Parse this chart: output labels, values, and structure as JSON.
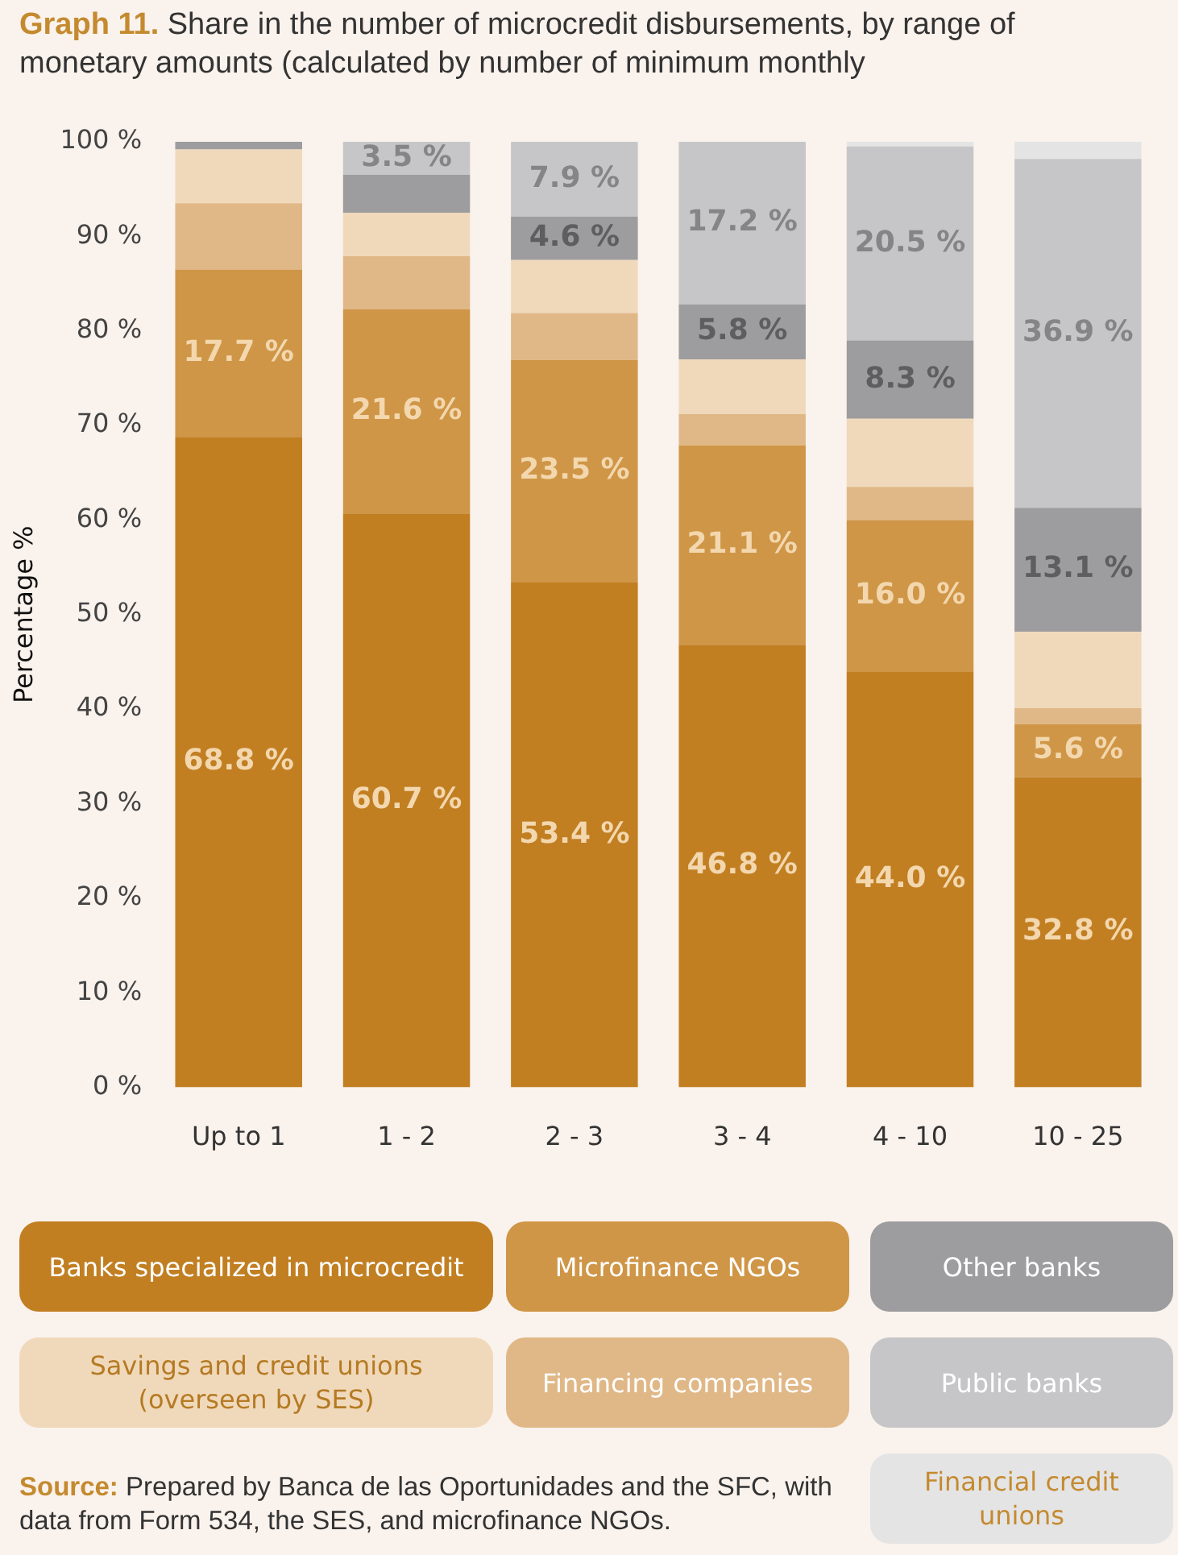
{
  "chart_data": {
    "type": "bar",
    "stacked": true,
    "title": "Graph 11. Share in the number of microcredit disbursements, by range of monetary amounts (calculated by number of minimum monthly",
    "ylabel": "Percentage %",
    "categories": [
      "Up to 1",
      "1 - 2",
      "2 - 3",
      "3 - 4",
      "4 - 10",
      "10 - 25"
    ],
    "ylim": [
      0,
      100
    ],
    "yticks": [
      {
        "value": 0,
        "label": "0 %"
      },
      {
        "value": 10,
        "label": "10 %"
      },
      {
        "value": 20,
        "label": "20 %"
      },
      {
        "value": 30,
        "label": "30 %"
      },
      {
        "value": 40,
        "label": "40 %"
      },
      {
        "value": 50,
        "label": "50 %"
      },
      {
        "value": 60,
        "label": "60 %"
      },
      {
        "value": 70,
        "label": "70 %"
      },
      {
        "value": 80,
        "label": "80 %"
      },
      {
        "value": 90,
        "label": "90 %"
      },
      {
        "value": 100,
        "label": "100 %"
      }
    ],
    "grid": false,
    "legend": "bottom",
    "series": [
      {
        "name": "Banks specialized in microcredit",
        "color": "#c17f22",
        "values": [
          68.8,
          60.7,
          53.4,
          46.8,
          44.0,
          32.8
        ],
        "value_labels": [
          "68.8 %",
          "60.7 %",
          "53.4 %",
          "46.8 %",
          "44.0 %",
          "32.8 %"
        ]
      },
      {
        "name": "Microfinance NGOs",
        "color": "#cf9647",
        "values": [
          17.7,
          21.6,
          23.5,
          21.1,
          16.0,
          5.6
        ],
        "value_labels": [
          "17.7 %",
          "21.6 %",
          "23.5 %",
          "21.1 %",
          "16.0 %",
          "5.6 %"
        ]
      },
      {
        "name": "Financing companies",
        "color": "#e0b887",
        "values": [
          7.0,
          5.6,
          5.0,
          3.3,
          3.5,
          1.7
        ]
      },
      {
        "name": "Savings and credit unions (overseen by SES)",
        "color": "#f0d9bb",
        "values": [
          5.7,
          4.6,
          5.6,
          5.8,
          7.2,
          8.1
        ]
      },
      {
        "name": "Other banks",
        "color": "#9d9c9e",
        "values": [
          0.8,
          4.0,
          4.6,
          5.8,
          8.3,
          13.1
        ],
        "value_labels": [
          null,
          null,
          "4.6 %",
          "5.8 %",
          "8.3 %",
          "13.1 %"
        ]
      },
      {
        "name": "Public banks",
        "color": "#c6c6c8",
        "values": [
          0,
          3.5,
          7.9,
          17.2,
          20.5,
          36.9
        ],
        "value_labels": [
          null,
          "3.5 %",
          "7.9 %",
          "17.2 %",
          "20.5 %",
          "36.9 %"
        ]
      },
      {
        "name": "Financial credit unions",
        "color": "#e4e4e4",
        "values": [
          0,
          0,
          0,
          0,
          0.5,
          1.8
        ]
      }
    ],
    "annotations": [
      "Source: Prepared by Banca de las Oportunidades and the SFC, with data from Form 534, the SES, and microfinance NGOs."
    ]
  }
}
